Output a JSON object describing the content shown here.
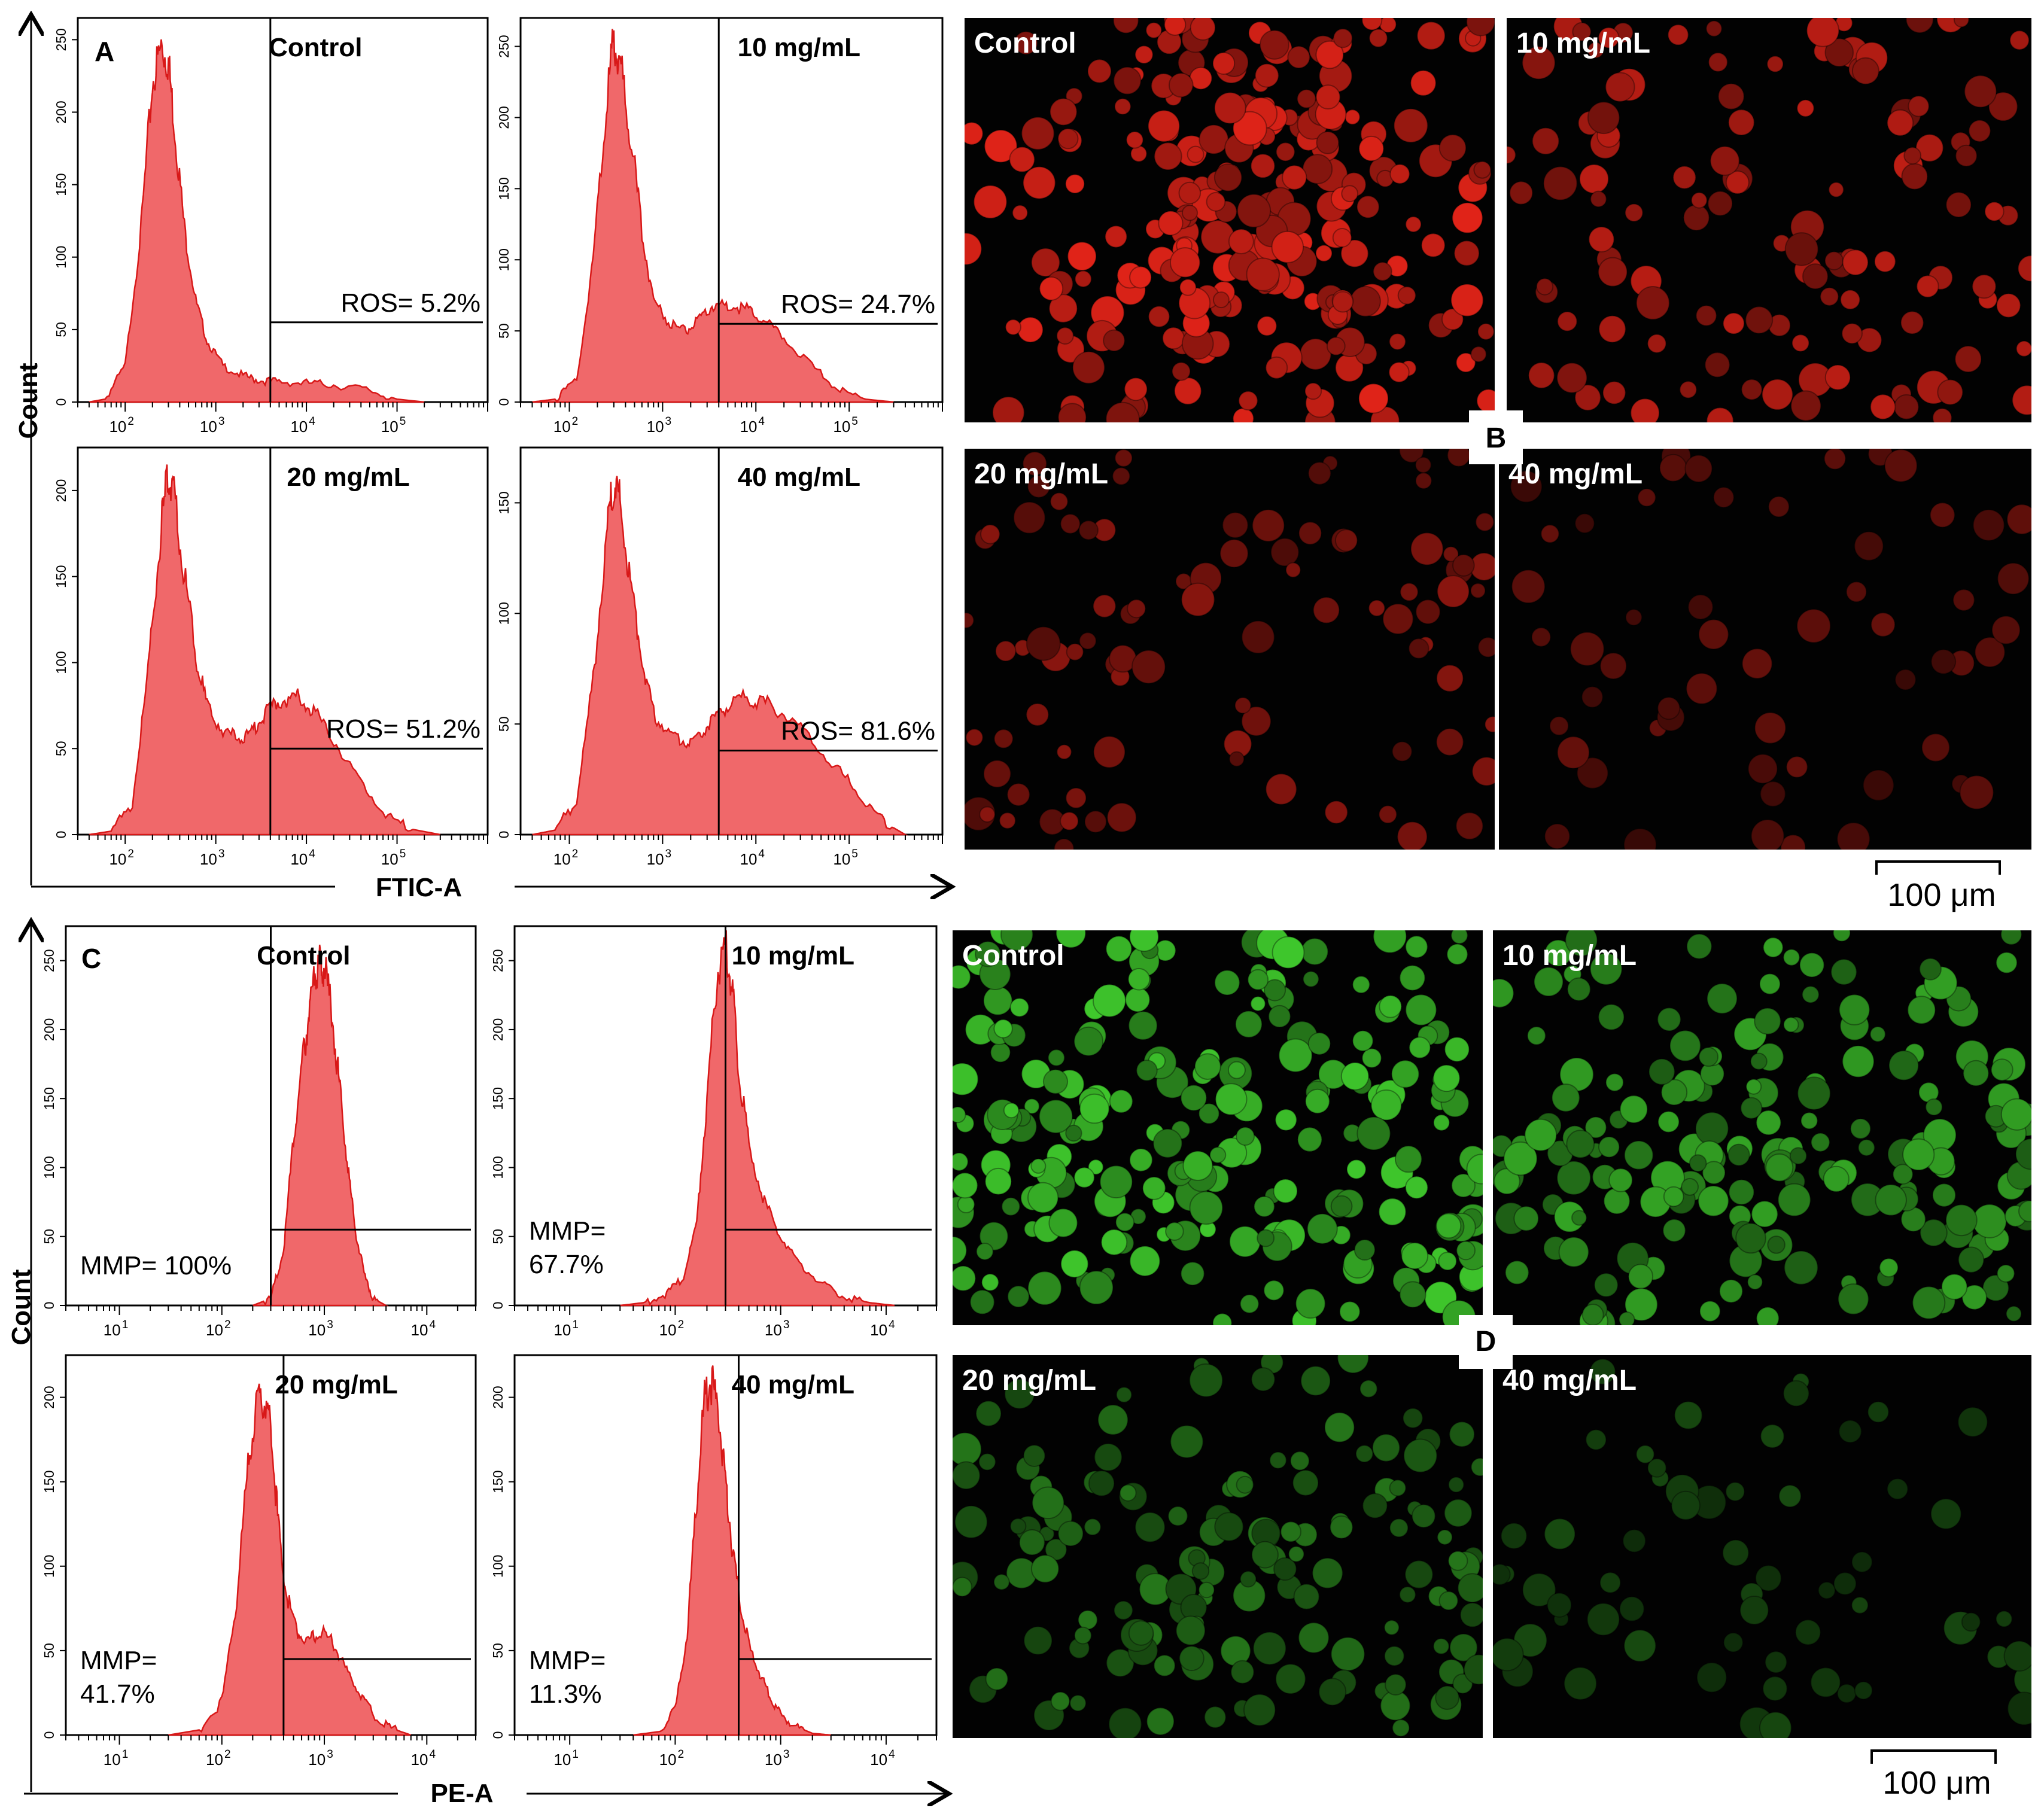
{
  "figure": {
    "panel_letters": {
      "A": "A",
      "B": "B",
      "C": "C",
      "D": "D"
    },
    "axis_titles": {
      "count": "Count",
      "ros_x": "FTIC-A",
      "mmp_x": "PE-A"
    },
    "scale_bar_label": "100 μm",
    "colors": {
      "histogram_fill": "#f0686a",
      "histogram_stroke": "#d81818",
      "ros_cell": "#e02318",
      "mmp_cell": "#3fc82c",
      "micrograph_bg": "#020202"
    }
  },
  "chart_data": [
    {
      "type": "area",
      "panel": "A",
      "title": "Control",
      "xlabel": "FTIC-A",
      "ylabel": "Count",
      "x_scale": "log",
      "x_tick_labels": [
        "10^2",
        "10^3",
        "10^4",
        "10^5"
      ],
      "x_ticks": [
        100,
        1000,
        10000,
        100000
      ],
      "xlim": [
        30,
        1000000
      ],
      "y_ticks": [
        0,
        50,
        100,
        150,
        200,
        250
      ],
      "ylim": [
        0,
        265
      ],
      "gate_x": 4000,
      "gate_y": 55,
      "annotation": "ROS= 5.2%",
      "x": [
        40,
        60,
        100,
        150,
        200,
        250,
        300,
        350,
        450,
        600,
        800,
        1200,
        2000,
        3000,
        5000,
        10000,
        20000,
        50000,
        100000,
        200000
      ],
      "y": [
        0,
        2,
        25,
        120,
        220,
        245,
        235,
        190,
        120,
        70,
        42,
        25,
        18,
        15,
        14,
        13,
        12,
        8,
        2,
        0
      ]
    },
    {
      "type": "area",
      "panel": "A",
      "title": "10 mg/mL",
      "xlabel": "FTIC-A",
      "ylabel": "Count",
      "x_scale": "log",
      "x_tick_labels": [
        "10^2",
        "10^3",
        "10^4",
        "10^5"
      ],
      "x_ticks": [
        100,
        1000,
        10000,
        100000
      ],
      "xlim": [
        30,
        1000000
      ],
      "y_ticks": [
        0,
        50,
        100,
        150,
        200,
        250
      ],
      "ylim": [
        0,
        270
      ],
      "gate_x": 4000,
      "gate_y": 55,
      "annotation": "ROS= 24.7%",
      "x": [
        40,
        70,
        120,
        180,
        250,
        300,
        350,
        450,
        600,
        800,
        1200,
        1800,
        2500,
        3500,
        5000,
        8000,
        12000,
        20000,
        40000,
        80000,
        150000,
        300000
      ],
      "y": [
        0,
        2,
        15,
        100,
        210,
        255,
        240,
        190,
        120,
        72,
        55,
        50,
        58,
        68,
        68,
        65,
        58,
        45,
        25,
        8,
        2,
        0
      ]
    },
    {
      "type": "area",
      "panel": "A",
      "title": "20 mg/mL",
      "xlabel": "FTIC-A",
      "ylabel": "Count",
      "x_scale": "log",
      "x_tick_labels": [
        "10^2",
        "10^3",
        "10^4",
        "10^5"
      ],
      "x_ticks": [
        100,
        1000,
        10000,
        100000
      ],
      "xlim": [
        30,
        1000000
      ],
      "y_ticks": [
        0,
        50,
        100,
        150,
        200
      ],
      "ylim": [
        0,
        225
      ],
      "gate_x": 4000,
      "gate_y": 50,
      "annotation": "ROS= 51.2%",
      "x": [
        40,
        70,
        120,
        180,
        250,
        300,
        350,
        450,
        600,
        800,
        1200,
        1800,
        2500,
        3500,
        5000,
        8000,
        12000,
        20000,
        40000,
        80000,
        150000,
        300000
      ],
      "y": [
        0,
        2,
        18,
        95,
        180,
        210,
        195,
        150,
        105,
        75,
        60,
        56,
        60,
        70,
        78,
        80,
        72,
        55,
        30,
        10,
        3,
        0
      ]
    },
    {
      "type": "area",
      "panel": "A",
      "title": "40 mg/mL",
      "xlabel": "FTIC-A",
      "ylabel": "Count",
      "x_scale": "log",
      "x_tick_labels": [
        "10^2",
        "10^3",
        "10^4",
        "10^5"
      ],
      "x_ticks": [
        100,
        1000,
        10000,
        100000
      ],
      "xlim": [
        30,
        1000000
      ],
      "y_ticks": [
        0,
        50,
        100,
        150
      ],
      "ylim": [
        0,
        175
      ],
      "gate_x": 4000,
      "gate_y": 38,
      "annotation": "ROS= 81.6%",
      "x": [
        40,
        70,
        120,
        180,
        250,
        300,
        350,
        450,
        600,
        800,
        1200,
        1800,
        2500,
        3500,
        5000,
        8000,
        12000,
        20000,
        40000,
        80000,
        150000,
        250000,
        400000
      ],
      "y": [
        0,
        2,
        15,
        70,
        135,
        160,
        150,
        115,
        80,
        55,
        45,
        42,
        45,
        52,
        58,
        62,
        60,
        55,
        42,
        28,
        15,
        5,
        0
      ]
    },
    {
      "type": "area",
      "panel": "C",
      "title": "Control",
      "xlabel": "PE-A",
      "ylabel": "Count",
      "x_scale": "log",
      "x_tick_labels": [
        "10^1",
        "10^2",
        "10^3",
        "10^4"
      ],
      "x_ticks": [
        10,
        100,
        1000,
        10000
      ],
      "xlim": [
        3,
        30000
      ],
      "y_ticks": [
        0,
        50,
        100,
        150,
        200,
        250
      ],
      "ylim": [
        0,
        275
      ],
      "gate_x": 300,
      "gate_y": 55,
      "annotation": "MMP= 100%",
      "x": [
        200,
        300,
        400,
        500,
        600,
        700,
        800,
        900,
        1000,
        1200,
        1400,
        1700,
        2000,
        2500,
        3000,
        4000
      ],
      "y": [
        0,
        5,
        40,
        120,
        170,
        210,
        240,
        250,
        245,
        210,
        160,
        100,
        55,
        20,
        5,
        0
      ]
    },
    {
      "type": "area",
      "panel": "C",
      "title": "10 mg/mL",
      "xlabel": "PE-A",
      "ylabel": "Count",
      "x_scale": "log",
      "x_tick_labels": [
        "10^1",
        "10^2",
        "10^3",
        "10^4"
      ],
      "x_ticks": [
        10,
        100,
        1000,
        10000
      ],
      "xlim": [
        3,
        30000
      ],
      "y_ticks": [
        0,
        50,
        100,
        150,
        200,
        250
      ],
      "ylim": [
        0,
        275
      ],
      "gate_x": 300,
      "gate_y": 55,
      "annotation": "MMP= 67.7%",
      "x": [
        30,
        50,
        80,
        120,
        160,
        200,
        250,
        300,
        350,
        400,
        500,
        700,
        1000,
        1500,
        2500,
        4000,
        7000,
        12000
      ],
      "y": [
        0,
        2,
        8,
        20,
        60,
        150,
        240,
        258,
        230,
        170,
        115,
        75,
        50,
        30,
        15,
        6,
        2,
        0
      ]
    },
    {
      "type": "area",
      "panel": "C",
      "title": "20 mg/mL",
      "xlabel": "PE-A",
      "ylabel": "Count",
      "x_scale": "log",
      "x_tick_labels": [
        "10^1",
        "10^2",
        "10^3",
        "10^4"
      ],
      "x_ticks": [
        10,
        100,
        1000,
        10000
      ],
      "xlim": [
        3,
        30000
      ],
      "y_ticks": [
        0,
        50,
        100,
        150,
        200
      ],
      "ylim": [
        0,
        225
      ],
      "gate_x": 400,
      "gate_y": 45,
      "annotation": "MMP= 41.7%",
      "x": [
        30,
        60,
        100,
        140,
        180,
        220,
        260,
        300,
        350,
        420,
        550,
        700,
        900,
        1200,
        1600,
        2200,
        3000,
        4500,
        7000
      ],
      "y": [
        0,
        3,
        20,
        80,
        160,
        195,
        200,
        180,
        130,
        85,
        60,
        55,
        62,
        55,
        40,
        25,
        12,
        4,
        0
      ]
    },
    {
      "type": "area",
      "panel": "C",
      "title": "40 mg/mL",
      "xlabel": "PE-A",
      "ylabel": "Count",
      "x_scale": "log",
      "x_tick_labels": [
        "10^1",
        "10^2",
        "10^3",
        "10^4"
      ],
      "x_ticks": [
        10,
        100,
        1000,
        10000
      ],
      "xlim": [
        3,
        30000
      ],
      "y_ticks": [
        0,
        50,
        100,
        150,
        200
      ],
      "ylim": [
        0,
        225
      ],
      "gate_x": 400,
      "gate_y": 45,
      "annotation": "MMP= 11.3%",
      "x": [
        40,
        70,
        100,
        130,
        160,
        190,
        220,
        260,
        300,
        350,
        420,
        520,
        650,
        800,
        1000,
        1400,
        2000,
        3000
      ],
      "y": [
        0,
        2,
        15,
        60,
        140,
        200,
        210,
        190,
        150,
        110,
        75,
        50,
        35,
        22,
        12,
        5,
        1,
        0
      ]
    }
  ],
  "micrographs": [
    {
      "group": "B",
      "label": "Control",
      "stain": "ros",
      "cell_count": 240,
      "intensity": 1.0
    },
    {
      "group": "B",
      "label": "10 mg/mL",
      "stain": "ros",
      "cell_count": 120,
      "intensity": 0.85
    },
    {
      "group": "B",
      "label": "20 mg/mL",
      "stain": "ros",
      "cell_count": 90,
      "intensity": 0.62
    },
    {
      "group": "B",
      "label": "40 mg/mL",
      "stain": "ros",
      "cell_count": 55,
      "intensity": 0.45
    },
    {
      "group": "D",
      "label": "Control",
      "stain": "mmp",
      "cell_count": 230,
      "intensity": 1.0
    },
    {
      "group": "D",
      "label": "10 mg/mL",
      "stain": "mmp",
      "cell_count": 190,
      "intensity": 0.82
    },
    {
      "group": "D",
      "label": "20 mg/mL",
      "stain": "mmp",
      "cell_count": 150,
      "intensity": 0.6
    },
    {
      "group": "D",
      "label": "40 mg/mL",
      "stain": "mmp",
      "cell_count": 60,
      "intensity": 0.38
    }
  ]
}
